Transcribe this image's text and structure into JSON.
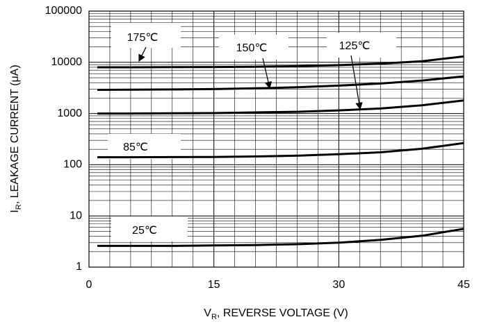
{
  "chart_data": {
    "type": "line",
    "xlabel": {
      "main": "V",
      "sub": "R",
      "rest": ", REVERSE VOLTAGE (V)"
    },
    "ylabel": {
      "main": "I",
      "sub": "R",
      "rest": ", LEAKAGE CURRENT (μA)"
    },
    "x": [
      1,
      5,
      10,
      15,
      20,
      25,
      30,
      35,
      40,
      45
    ],
    "series": [
      {
        "name": "25℃",
        "color": "#000000",
        "values": [
          2.6,
          2.6,
          2.6,
          2.65,
          2.7,
          2.8,
          3.0,
          3.4,
          4.1,
          5.6
        ]
      },
      {
        "name": "85℃",
        "color": "#000000",
        "values": [
          140,
          140,
          141,
          142,
          145,
          150,
          160,
          175,
          205,
          265
        ]
      },
      {
        "name": "125℃",
        "color": "#000000",
        "values": [
          1000,
          1000,
          1010,
          1020,
          1050,
          1080,
          1150,
          1250,
          1450,
          1800
        ]
      },
      {
        "name": "150℃",
        "color": "#000000",
        "values": [
          2900,
          2920,
          2950,
          3000,
          3100,
          3250,
          3500,
          3850,
          4400,
          5300
        ]
      },
      {
        "name": "175℃",
        "color": "#000000",
        "values": [
          8000,
          8000,
          8050,
          8100,
          8200,
          8400,
          8800,
          9400,
          10500,
          13000
        ]
      }
    ],
    "xlim": [
      0,
      45
    ],
    "xticks": [
      0,
      15,
      30,
      45
    ],
    "x_minor_ticks": [
      2.5,
      5,
      7.5,
      10,
      12.5,
      17.5,
      20,
      22.5,
      25,
      27.5,
      32.5,
      35,
      37.5,
      40,
      42.5
    ],
    "ylim": [
      1,
      100000
    ],
    "yticks": [
      1,
      10,
      100,
      1000,
      10000,
      100000
    ],
    "y_minor_ticks": [
      2,
      3,
      4,
      5,
      6,
      7,
      8,
      9,
      20,
      30,
      40,
      50,
      60,
      70,
      80,
      90,
      200,
      300,
      400,
      500,
      600,
      700,
      800,
      900,
      2000,
      3000,
      4000,
      5000,
      6000,
      7000,
      8000,
      9000,
      20000,
      30000,
      40000,
      50000,
      60000,
      70000,
      80000,
      90000
    ],
    "log_y": true,
    "grid": true
  }
}
